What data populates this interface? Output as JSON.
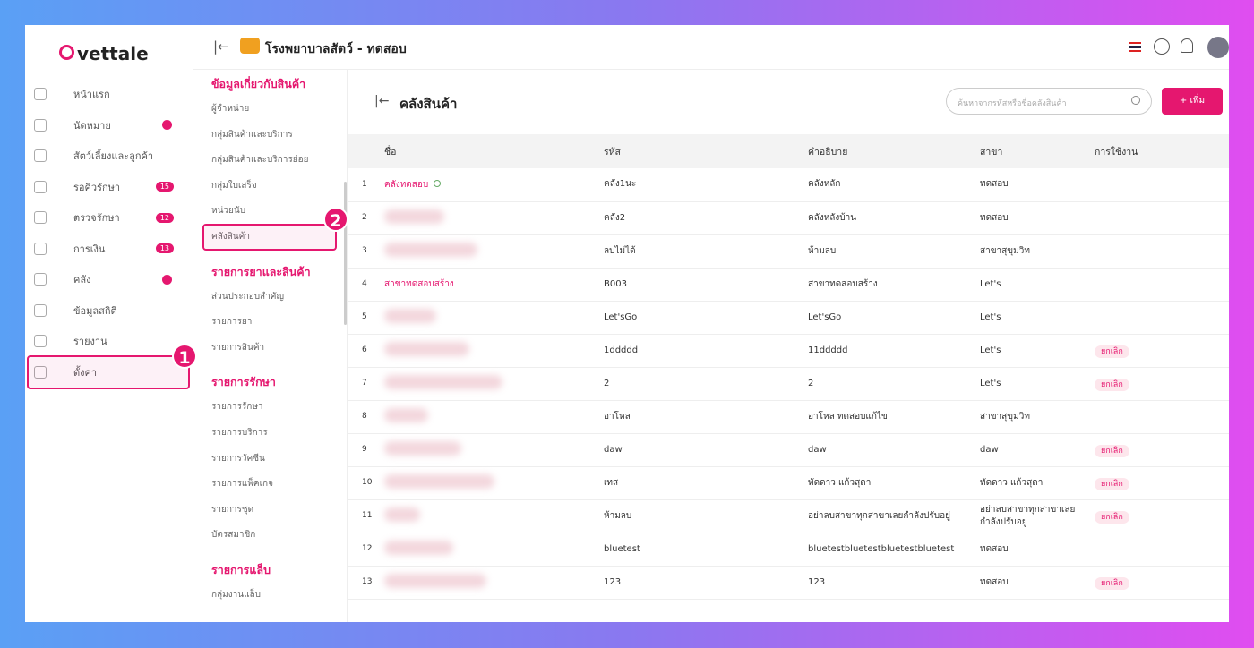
{
  "brand": "vettale",
  "header": {
    "clinic": "โรงพยาบาลสัตว์ - ทดสอบ"
  },
  "sidebar": {
    "items": [
      {
        "label": "หน้าแรก",
        "badge": null
      },
      {
        "label": "นัดหมาย",
        "badge": null
      },
      {
        "label": "สัตว์เลี้ยงและลูกค้า",
        "badge": null
      },
      {
        "label": "รอคิวรักษา",
        "badge": 15
      },
      {
        "label": "ตรวจรักษา",
        "badge": 12
      },
      {
        "label": "การเงิน",
        "badge": 13
      },
      {
        "label": "คลัง",
        "badge": null
      },
      {
        "label": "ข้อมูลสถิติ",
        "badge": null
      },
      {
        "label": "รายงาน",
        "badge": null
      },
      {
        "label": "ตั้งค่า",
        "badge": null
      }
    ]
  },
  "submenu": {
    "sections": [
      {
        "title": "ข้อมูลเกี่ยวกับสินค้า",
        "items": [
          "ผู้จำหน่าย",
          "กลุ่มสินค้าและบริการ",
          "กลุ่มสินค้าและบริการย่อย",
          "กลุ่มใบเสร็จ",
          "หน่วยนับ",
          "คลังสินค้า"
        ]
      },
      {
        "title": "รายการยาและสินค้า",
        "items": [
          "ส่วนประกอบสำคัญ",
          "รายการยา",
          "รายการสินค้า"
        ]
      },
      {
        "title": "รายการรักษา",
        "items": [
          "รายการรักษา",
          "รายการบริการ",
          "รายการวัคซีน",
          "รายการแพ็คเกจ",
          "รายการชุด",
          "บัตรสมาชิก"
        ]
      },
      {
        "title": "รายการแล็บ",
        "items": [
          "กลุ่มงานแล็บ"
        ]
      }
    ]
  },
  "annotations": [
    "1",
    "2"
  ],
  "page": {
    "title": "คลังสินค้า",
    "search_placeholder": "ค้นหาจากรหัสหรือชื่อคลังสินค้า",
    "add_button": "เพิ่ม"
  },
  "table": {
    "columns": [
      "ชื่อ",
      "รหัส",
      "คำอธิบาย",
      "สาขา",
      "การใช้งาน"
    ],
    "rows": [
      [
        1,
        "คลังทดสอบ",
        "คลัง1นะ",
        "คลังหลัก",
        "ทดสอบ",
        null
      ],
      [
        2,
        null,
        "คลัง2",
        "คลังหลังบ้าน",
        "ทดสอบ",
        null
      ],
      [
        3,
        null,
        "ลบไม่ได้",
        "ห้ามลบ",
        "สาขาสุขุมวิท",
        null
      ],
      [
        4,
        "สาขาทดสอบสร้าง",
        "B003",
        "สาขาทดสอบสร้าง",
        "Let's",
        null
      ],
      [
        5,
        null,
        "Let'sGo",
        "Let'sGo",
        "Let's",
        null
      ],
      [
        6,
        null,
        "1ddddd",
        "11ddddd",
        "Let's",
        "ยกเลิก"
      ],
      [
        7,
        null,
        "2",
        "2",
        "Let's",
        "ยกเลิก"
      ],
      [
        8,
        null,
        "อาโหล",
        "อาโหล ทดสอบแก้ไข",
        "สาขาสุขุมวิท",
        null
      ],
      [
        9,
        null,
        "daw",
        "daw",
        "daw",
        "ยกเลิก"
      ],
      [
        10,
        null,
        "เทส",
        "ทัดดาว แก้วสุดา",
        "ทัดดาว แก้วสุดา",
        "ยกเลิก"
      ],
      [
        11,
        null,
        "ห้ามลบ",
        "อย่าลบสาขาทุกสาขาเลยกำลังปรับอยู่",
        "อย่าลบสาขาทุกสาขาเลยกำลังปรับอยู่",
        "ยกเลิก"
      ],
      [
        12,
        null,
        "bluetest",
        "bluetestbluetestbluetestbluetest",
        "ทดสอบ",
        null
      ],
      [
        13,
        null,
        "123",
        "123",
        "ทดสอบ",
        "ยกเลิก"
      ]
    ]
  }
}
